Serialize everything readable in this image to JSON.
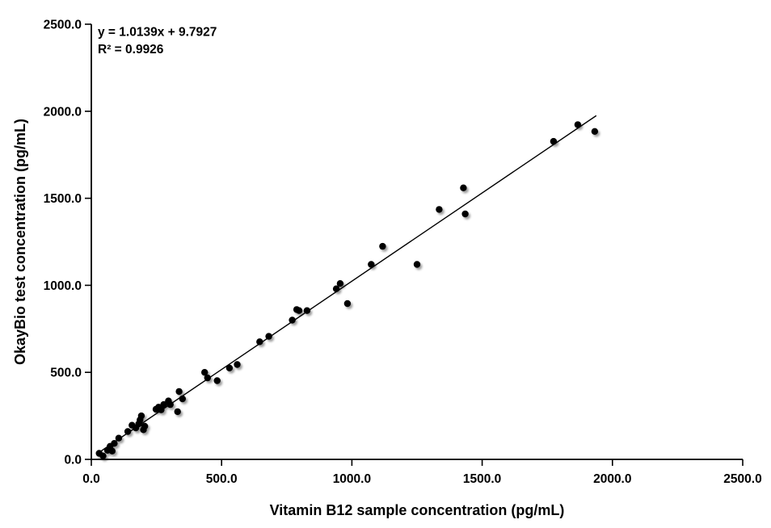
{
  "page": {
    "background_color": "#ffffff"
  },
  "chart_data": {
    "type": "scatter",
    "title": "",
    "xlabel": "Vitamin B12 sample concentration (pg/mL)",
    "ylabel": "OkayBio test concentration (pg/mL)",
    "xlim": [
      0,
      2500
    ],
    "ylim": [
      0,
      2500
    ],
    "grid": false,
    "legend": false,
    "x_axis": {
      "tick_values": [
        0,
        500,
        1000,
        1500,
        2000,
        2500
      ],
      "tick_labels": [
        "0.0",
        "500.0",
        "1000.0",
        "1500.0",
        "2000.0",
        "2500.0"
      ]
    },
    "y_axis": {
      "tick_values": [
        0,
        500,
        1000,
        1500,
        2000,
        2500
      ],
      "tick_labels": [
        "0.0",
        "500.0",
        "1000.0",
        "1500.0",
        "2000.0",
        "2500.0"
      ]
    },
    "annotation": {
      "line1": "y = 1.0139x + 9.7927",
      "line2": "R² = 0.9926"
    },
    "trendline": {
      "slope": 1.0139,
      "intercept": 9.7927,
      "x_start": 28,
      "x_end": 1938,
      "color": "#000000"
    },
    "marker": {
      "shape": "circle",
      "color": "#000000",
      "radius": 4.2
    },
    "colors": {
      "axis": "#000000",
      "text": "#000000"
    },
    "points": [
      [
        30,
        35
      ],
      [
        45,
        20
      ],
      [
        62,
        52
      ],
      [
        72,
        75
      ],
      [
        80,
        48
      ],
      [
        88,
        92
      ],
      [
        105,
        122
      ],
      [
        140,
        160
      ],
      [
        156,
        196
      ],
      [
        171,
        181
      ],
      [
        182,
        204
      ],
      [
        187,
        227
      ],
      [
        192,
        250
      ],
      [
        200,
        170
      ],
      [
        205,
        190
      ],
      [
        248,
        288
      ],
      [
        258,
        300
      ],
      [
        268,
        285
      ],
      [
        278,
        315
      ],
      [
        296,
        336
      ],
      [
        303,
        315
      ],
      [
        331,
        274
      ],
      [
        337,
        390
      ],
      [
        350,
        348
      ],
      [
        435,
        500
      ],
      [
        446,
        468
      ],
      [
        483,
        452
      ],
      [
        530,
        525
      ],
      [
        560,
        545
      ],
      [
        646,
        676
      ],
      [
        681,
        707
      ],
      [
        771,
        800
      ],
      [
        788,
        861
      ],
      [
        797,
        855
      ],
      [
        828,
        855
      ],
      [
        940,
        980
      ],
      [
        955,
        1010
      ],
      [
        983,
        895
      ],
      [
        1074,
        1120
      ],
      [
        1118,
        1224
      ],
      [
        1250,
        1120
      ],
      [
        1335,
        1436
      ],
      [
        1428,
        1560
      ],
      [
        1435,
        1410
      ],
      [
        1774,
        1827
      ],
      [
        1867,
        1923
      ],
      [
        1932,
        1884
      ]
    ]
  }
}
